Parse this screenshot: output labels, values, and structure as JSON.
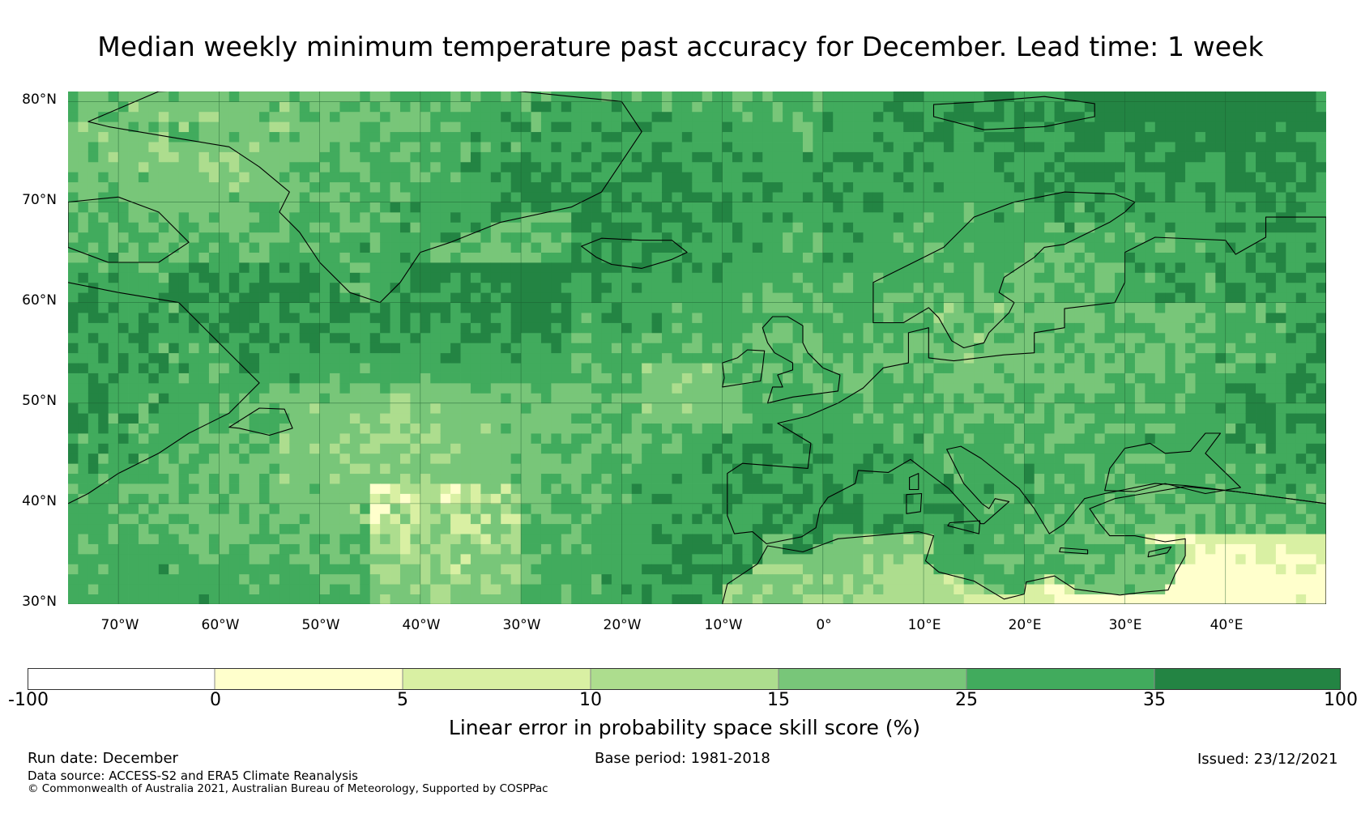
{
  "title": "Median weekly minimum temperature past accuracy for December. Lead time: 1 week",
  "map": {
    "lat_labels": [
      "80°N",
      "70°N",
      "60°N",
      "50°N",
      "40°N",
      "30°N"
    ],
    "lon_labels": [
      "70°W",
      "60°W",
      "50°W",
      "40°W",
      "30°W",
      "20°W",
      "10°W",
      "0°",
      "10°E",
      "20°E",
      "30°E",
      "40°E"
    ],
    "extent": {
      "lon_min": -75,
      "lon_max": 50,
      "lat_min": 30,
      "lat_max": 81
    },
    "colors": {
      "c35": "#238443",
      "c25": "#41ab5d",
      "c15": "#78c679",
      "c10": "#addd8e",
      "c5": "#d9f0a3",
      "c0": "#ffffcc",
      "cneg": "#ffffff",
      "coast": "#000000",
      "grid": "#1a5c2e"
    }
  },
  "colorbar": {
    "tick_labels": [
      "-100",
      "0",
      "5",
      "10",
      "15",
      "25",
      "35",
      "100"
    ],
    "colors": [
      "#ffffff",
      "#ffffcc",
      "#d9f0a3",
      "#addd8e",
      "#78c679",
      "#41ab5d",
      "#238443"
    ],
    "title": "Linear error in probability space skill score (%)"
  },
  "footer": {
    "run_date": "Run date: December",
    "base_period": "Base period: 1981-2018",
    "issued": "Issued: 23/12/2021",
    "data_source": "Data source: ACCESS-S2 and ERA5 Climate Reanalysis",
    "copyright": "© Commonwealth of Australia 2021, Australian Bureau of Meteorology, Supported by COSPPac"
  }
}
